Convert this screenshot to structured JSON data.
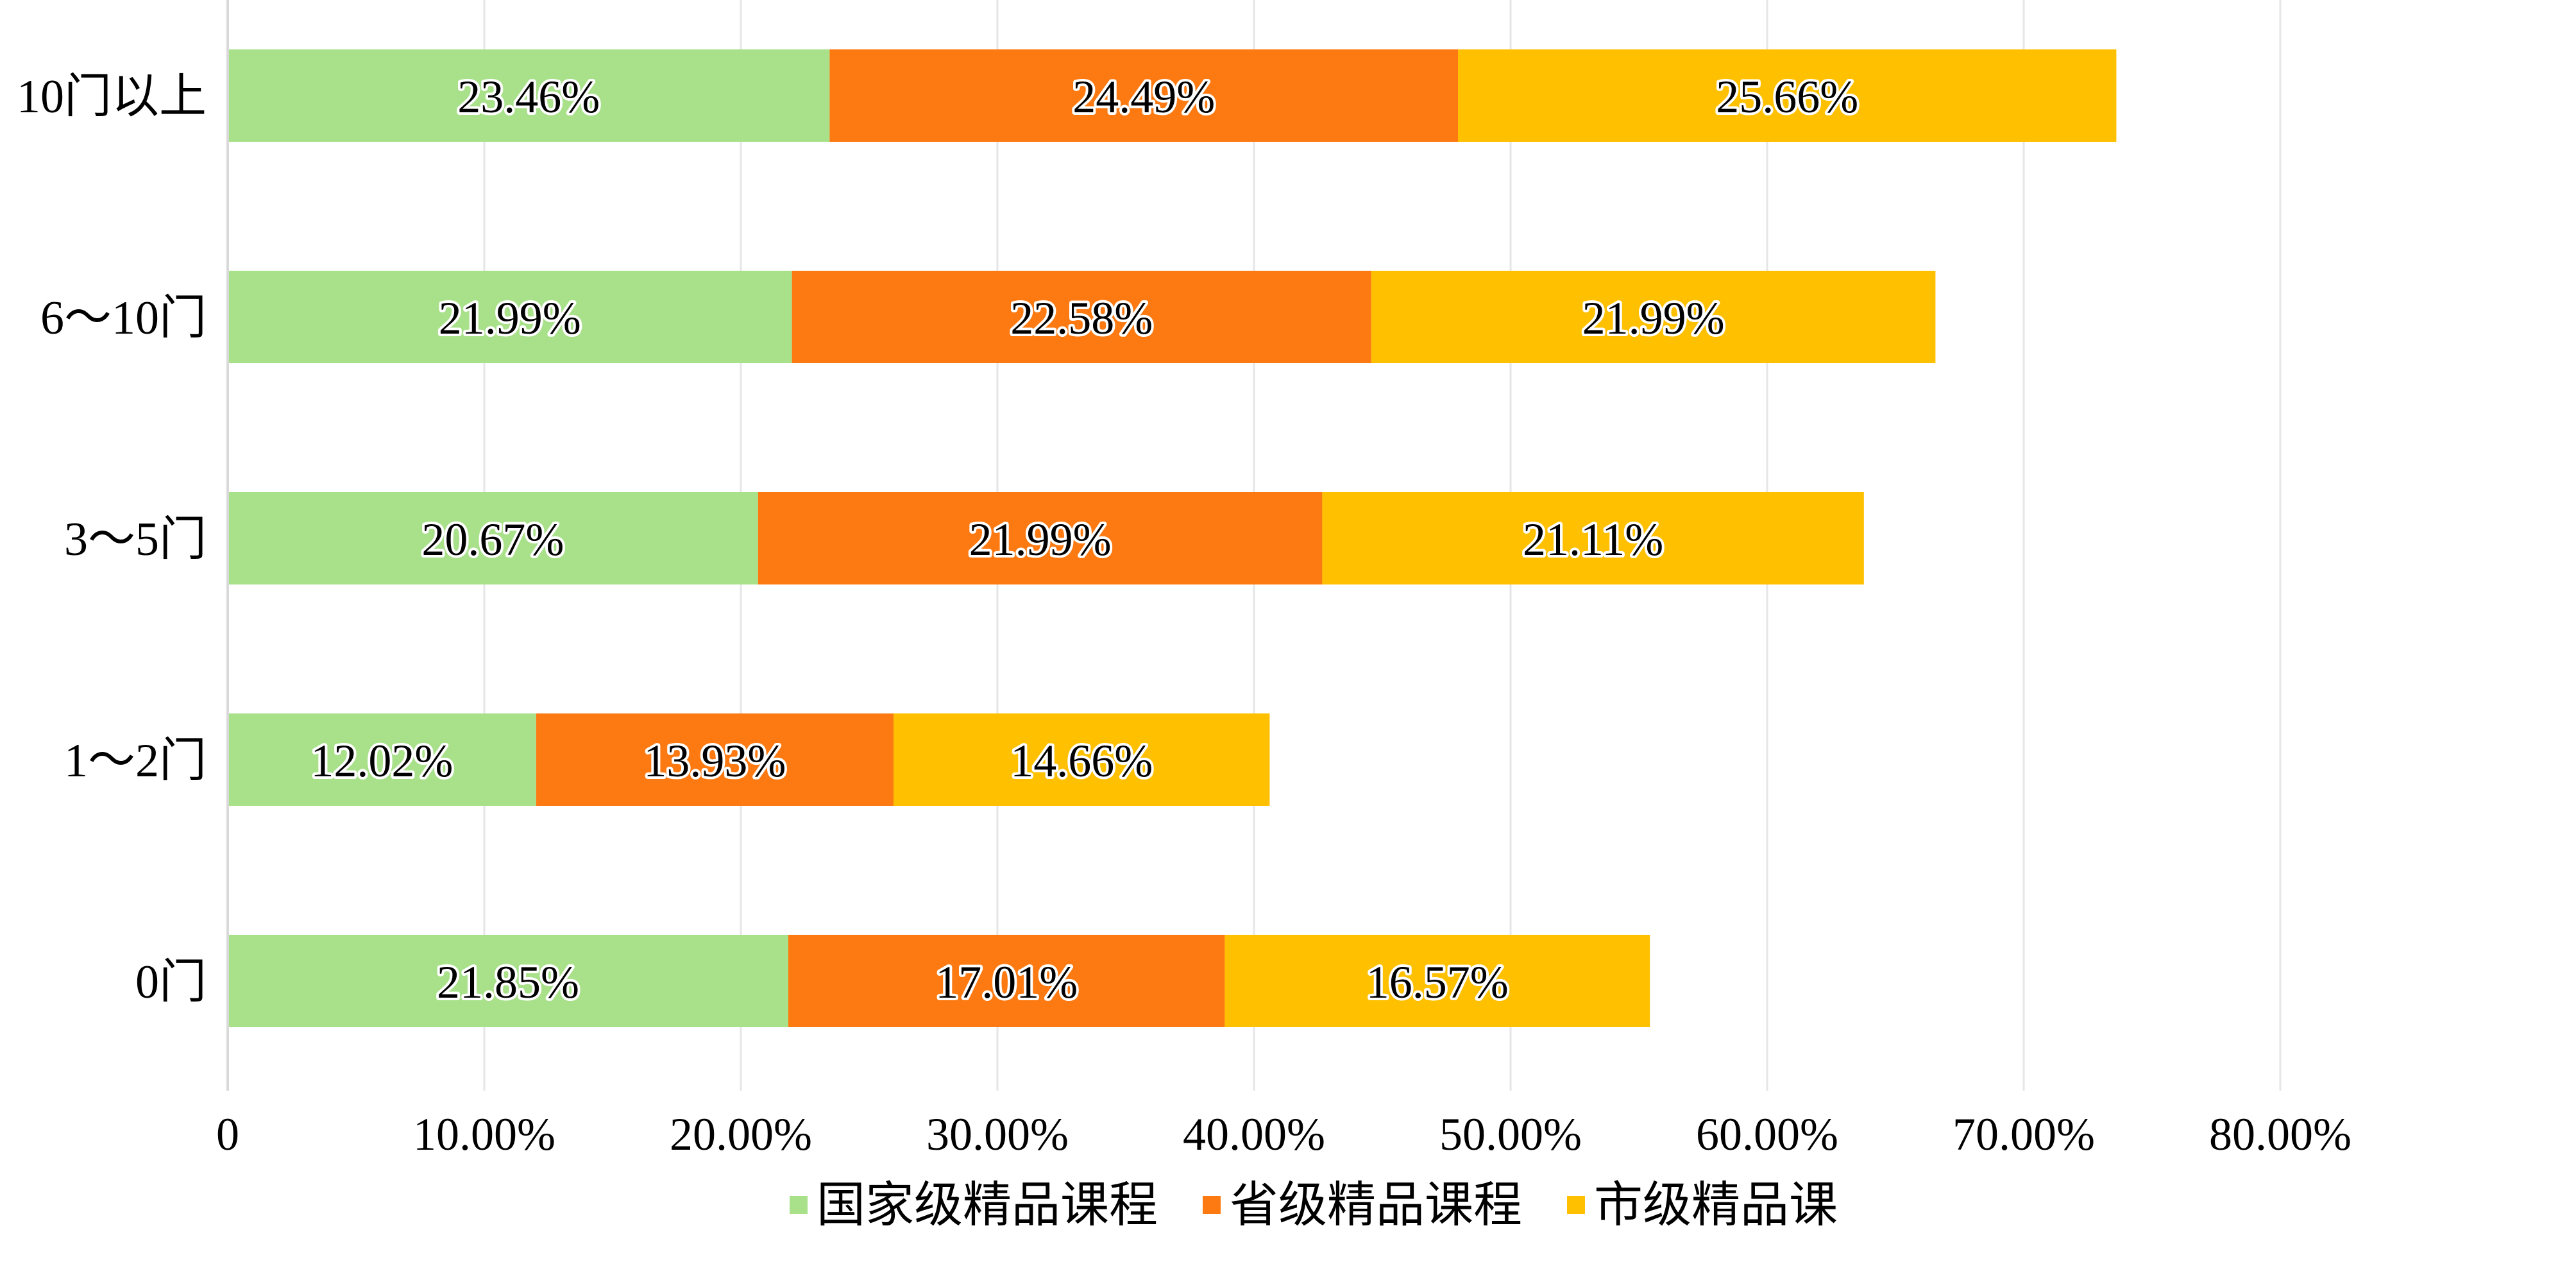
{
  "chart_data": {
    "type": "bar",
    "orientation": "horizontal",
    "stacked": true,
    "categories": [
      "10门以上",
      "6～10门",
      "3～5门",
      "1～2门",
      "0门"
    ],
    "series": [
      {
        "name": "国家级精品课程",
        "color": "#A9E18B",
        "values": [
          23.46,
          21.99,
          20.67,
          12.02,
          21.85
        ],
        "labels": [
          "23.46%",
          "21.99%",
          "20.67%",
          "12.02%",
          "21.85%"
        ]
      },
      {
        "name": "省级精品课程",
        "color": "#FD7A12",
        "values": [
          24.49,
          22.58,
          21.99,
          13.93,
          17.01
        ],
        "labels": [
          "24.49%",
          "22.58%",
          "21.99%",
          "13.93%",
          "17.01%"
        ]
      },
      {
        "name": "市级精品课",
        "color": "#FFC000",
        "values": [
          25.66,
          21.99,
          21.11,
          14.66,
          16.57
        ],
        "labels": [
          "25.66%",
          "21.99%",
          "21.11%",
          "14.66%",
          "16.57%"
        ]
      }
    ],
    "xlim": [
      0,
      80
    ],
    "xticks": [
      0,
      10,
      20,
      30,
      40,
      50,
      60,
      70,
      80
    ],
    "xtick_labels": [
      "0",
      "10.00%",
      "20.00%",
      "30.00%",
      "40.00%",
      "50.00%",
      "60.00%",
      "70.00%",
      "80.00%"
    ],
    "title": "",
    "xlabel": "",
    "ylabel": "",
    "grid": "vertical",
    "legend_position": "bottom"
  }
}
